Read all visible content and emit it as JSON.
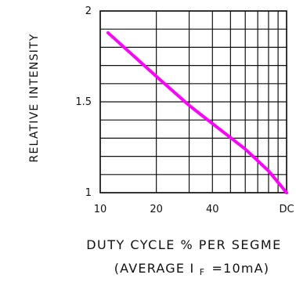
{
  "chart_data": {
    "type": "line",
    "title": "",
    "xlabel": "DUTY CYCLE % PER SEGME",
    "xlabel_sub_prefix": "(AVERAGE I",
    "xlabel_sub_subscript": "F",
    "xlabel_sub_suffix": "=10mA)",
    "ylabel": "RELATIVE INTENSITY",
    "xscale": "log",
    "xlim": [
      10,
      100
    ],
    "ylim": [
      1,
      2
    ],
    "x_ticks": [
      {
        "value": 10,
        "label": "10"
      },
      {
        "value": 20,
        "label": "20"
      },
      {
        "value": 40,
        "label": "40"
      },
      {
        "value": 100,
        "label": "DC"
      }
    ],
    "y_ticks": [
      {
        "value": 1,
        "label": "1"
      },
      {
        "value": 1.5,
        "label": "1.5"
      },
      {
        "value": 2,
        "label": "2"
      }
    ],
    "grid": true,
    "grid_x_values": [
      10,
      20,
      30,
      40,
      50,
      60,
      70,
      80,
      90,
      100
    ],
    "grid_y_values": [
      1,
      1.1,
      1.2,
      1.3,
      1.4,
      1.5,
      1.6,
      1.7,
      1.8,
      1.9,
      2
    ],
    "series": [
      {
        "color": "#ff00ff",
        "points": [
          {
            "x": 11,
            "y": 1.88
          },
          {
            "x": 20,
            "y": 1.64
          },
          {
            "x": 30,
            "y": 1.48
          },
          {
            "x": 40,
            "y": 1.38
          },
          {
            "x": 60,
            "y": 1.24
          },
          {
            "x": 80,
            "y": 1.12
          },
          {
            "x": 100,
            "y": 1.0
          }
        ]
      }
    ]
  }
}
